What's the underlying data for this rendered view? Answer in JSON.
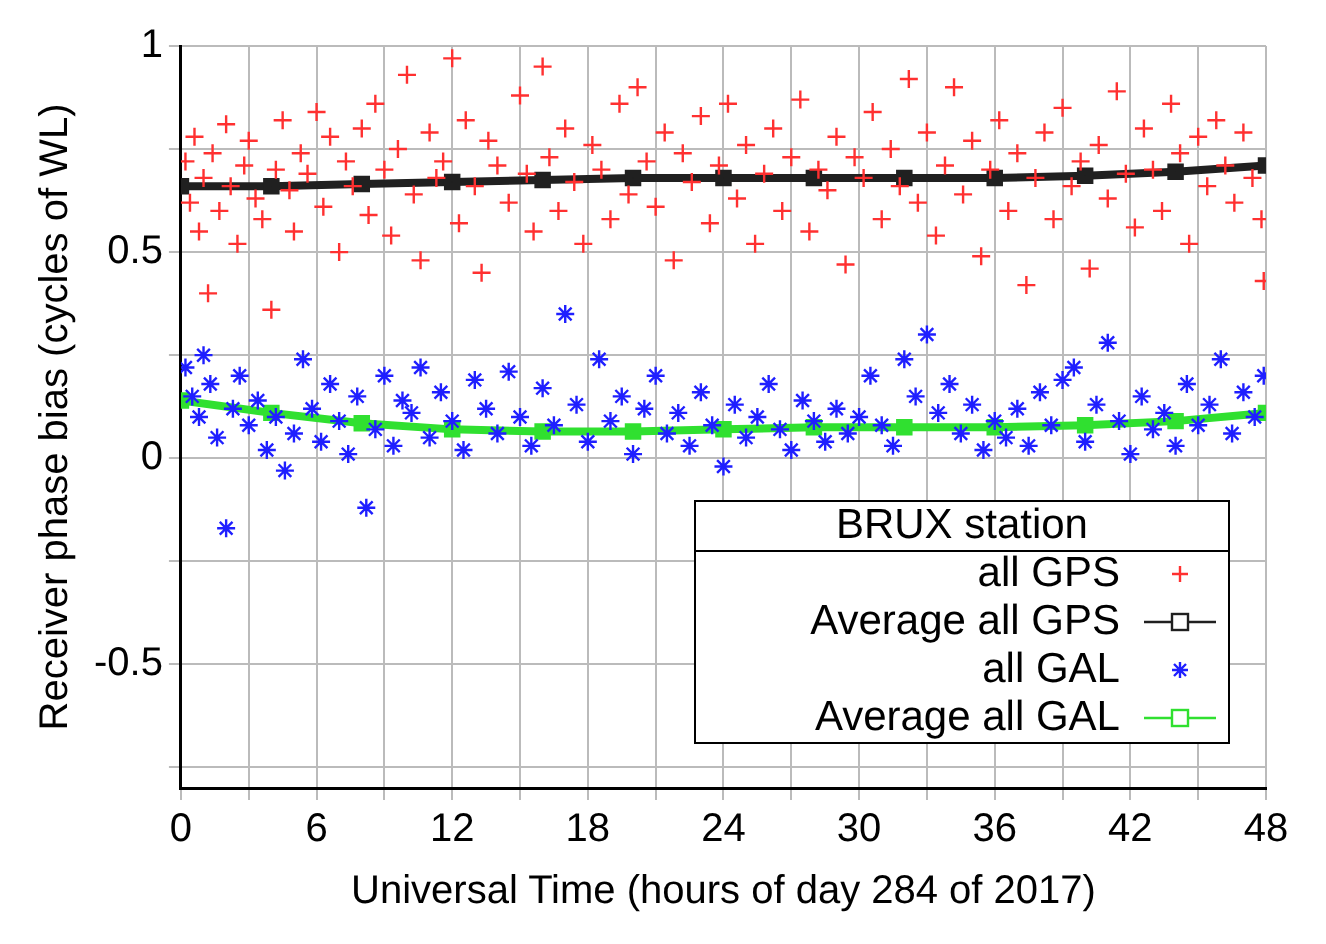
{
  "chart_data": {
    "type": "scatter",
    "xlabel": "Universal Time (hours of day 284 of 2017)",
    "ylabel": "Receiver phase bias (cycles of WL)",
    "legend_title": "BRUX station",
    "legend": "bottom right",
    "grid": true,
    "xlim": [
      0,
      48
    ],
    "xticks": [
      0,
      {
        "value": 3,
        "label": null
      },
      6,
      {
        "value": 9,
        "label": null
      },
      12,
      {
        "value": 15,
        "label": null
      },
      18,
      {
        "value": 21,
        "label": null
      },
      24,
      {
        "value": 27,
        "label": null
      },
      30,
      {
        "value": 33,
        "label": null
      },
      36,
      {
        "value": 39,
        "label": null
      },
      42,
      {
        "value": 45,
        "label": null
      },
      48
    ],
    "ylim": [
      -0.8,
      1
    ],
    "yticks": [
      1,
      {
        "value": 0.75,
        "label": null
      },
      0.5,
      {
        "value": 0.25,
        "label": null
      },
      0,
      {
        "value": -0.25,
        "label": null
      },
      -0.5,
      {
        "value": -0.75,
        "label": null
      }
    ],
    "series": [
      {
        "name": "all GPS",
        "type": "scatter",
        "marker": "cross",
        "color": "#ff3030",
        "x": [
          0.2,
          0.4,
          0.6,
          0.8,
          1,
          1.2,
          1.4,
          1.7,
          2,
          2.2,
          2.5,
          2.8,
          3,
          3.3,
          3.6,
          4,
          4.2,
          4.5,
          4.8,
          5,
          5.3,
          5.6,
          6,
          6.3,
          6.6,
          7,
          7.3,
          7.6,
          8,
          8.3,
          8.6,
          9,
          9.3,
          9.6,
          10,
          10.3,
          10.6,
          11,
          11.3,
          11.6,
          12,
          12.3,
          12.6,
          13,
          13.3,
          13.6,
          14,
          14.5,
          15,
          15.3,
          15.6,
          16,
          16.3,
          16.7,
          17,
          17.4,
          17.8,
          18.2,
          18.6,
          19,
          19.4,
          19.8,
          20.2,
          20.6,
          21,
          21.4,
          21.8,
          22.2,
          22.6,
          23,
          23.4,
          23.8,
          24.2,
          24.6,
          25,
          25.4,
          25.8,
          26.2,
          26.6,
          27,
          27.4,
          27.8,
          28.2,
          28.6,
          29,
          29.4,
          29.8,
          30.2,
          30.6,
          31,
          31.4,
          31.8,
          32.2,
          32.6,
          33,
          33.4,
          33.8,
          34.2,
          34.6,
          35,
          35.4,
          35.8,
          36.2,
          36.6,
          37,
          37.4,
          37.8,
          38.2,
          38.6,
          39,
          39.4,
          39.8,
          40.2,
          40.6,
          41,
          41.4,
          41.8,
          42.2,
          42.6,
          43,
          43.4,
          43.8,
          44.2,
          44.6,
          45,
          45.4,
          45.8,
          46.2,
          46.6,
          47,
          47.4,
          47.8,
          47.9
        ],
        "values": [
          0.72,
          0.62,
          0.78,
          0.55,
          0.68,
          0.4,
          0.74,
          0.6,
          0.81,
          0.66,
          0.52,
          0.71,
          0.77,
          0.63,
          0.58,
          0.36,
          0.7,
          0.82,
          0.65,
          0.55,
          0.74,
          0.69,
          0.84,
          0.61,
          0.78,
          0.5,
          0.72,
          0.66,
          0.8,
          0.59,
          0.86,
          0.7,
          0.54,
          0.75,
          0.93,
          0.64,
          0.48,
          0.79,
          0.68,
          0.72,
          0.97,
          0.57,
          0.82,
          0.66,
          0.45,
          0.77,
          0.71,
          0.62,
          0.88,
          0.69,
          0.55,
          0.95,
          0.73,
          0.6,
          0.8,
          0.67,
          0.52,
          0.76,
          0.7,
          0.58,
          0.86,
          0.64,
          0.9,
          0.72,
          0.61,
          0.79,
          0.48,
          0.74,
          0.67,
          0.83,
          0.57,
          0.71,
          0.86,
          0.63,
          0.76,
          0.52,
          0.69,
          0.8,
          0.6,
          0.73,
          0.87,
          0.55,
          0.7,
          0.65,
          0.78,
          0.47,
          0.73,
          0.68,
          0.84,
          0.58,
          0.75,
          0.66,
          0.92,
          0.62,
          0.79,
          0.54,
          0.71,
          0.9,
          0.64,
          0.77,
          0.49,
          0.7,
          0.82,
          0.6,
          0.74,
          0.42,
          0.68,
          0.79,
          0.58,
          0.85,
          0.66,
          0.72,
          0.46,
          0.76,
          0.63,
          0.89,
          0.69,
          0.56,
          0.8,
          0.7,
          0.6,
          0.86,
          0.74,
          0.52,
          0.78,
          0.66,
          0.82,
          0.71,
          0.62,
          0.79,
          0.68,
          0.58,
          0.43
        ]
      },
      {
        "name": "Average all GPS",
        "type": "line",
        "marker": "square",
        "color": "#202020",
        "x": [
          0,
          4,
          8,
          12,
          16,
          20,
          24,
          28,
          32,
          36,
          40,
          44,
          48
        ],
        "values": [
          0.66,
          0.66,
          0.665,
          0.67,
          0.675,
          0.68,
          0.68,
          0.68,
          0.68,
          0.68,
          0.685,
          0.695,
          0.71
        ]
      },
      {
        "name": "all GAL",
        "type": "scatter",
        "color": "#1f1fff",
        "x": [
          0.2,
          0.5,
          0.8,
          1,
          1.3,
          1.6,
          2,
          2.3,
          2.6,
          3,
          3.4,
          3.8,
          4.2,
          4.6,
          5,
          5.4,
          5.8,
          6.2,
          6.6,
          7,
          7.4,
          7.8,
          8.2,
          8.6,
          9,
          9.4,
          9.8,
          10.2,
          10.6,
          11,
          11.5,
          12,
          12.5,
          13,
          13.5,
          14,
          14.5,
          15,
          15.5,
          16,
          16.5,
          17,
          17.5,
          18,
          18.5,
          19,
          19.5,
          20,
          20.5,
          21,
          21.5,
          22,
          22.5,
          23,
          23.5,
          24,
          24.5,
          25,
          25.5,
          26,
          26.5,
          27,
          27.5,
          28,
          28.5,
          29,
          29.5,
          30,
          30.5,
          31,
          31.5,
          32,
          32.5,
          33,
          33.5,
          34,
          34.5,
          35,
          35.5,
          36,
          36.5,
          37,
          37.5,
          38,
          38.5,
          39,
          39.5,
          40,
          40.5,
          41,
          41.5,
          42,
          42.5,
          43,
          43.5,
          44,
          44.5,
          45,
          45.5,
          46,
          46.5,
          47,
          47.5,
          47.9
        ],
        "values": [
          0.22,
          0.15,
          0.1,
          0.25,
          0.18,
          0.05,
          -0.17,
          0.12,
          0.2,
          0.08,
          0.14,
          0.02,
          0.1,
          -0.03,
          0.06,
          0.24,
          0.12,
          0.04,
          0.18,
          0.09,
          0.01,
          0.15,
          -0.12,
          0.07,
          0.2,
          0.03,
          0.14,
          0.11,
          0.22,
          0.05,
          0.16,
          0.09,
          0.02,
          0.19,
          0.12,
          0.06,
          0.21,
          0.1,
          0.03,
          0.17,
          0.08,
          0.35,
          0.13,
          0.04,
          0.24,
          0.09,
          0.15,
          0.01,
          0.12,
          0.2,
          0.06,
          0.11,
          0.03,
          0.16,
          0.08,
          -0.02,
          0.13,
          0.05,
          0.1,
          0.18,
          0.07,
          0.02,
          0.14,
          0.09,
          0.04,
          0.12,
          0.06,
          0.1,
          0.2,
          0.08,
          0.03,
          0.24,
          0.15,
          0.3,
          0.11,
          0.18,
          0.06,
          0.13,
          0.02,
          0.09,
          0.05,
          0.12,
          0.03,
          0.16,
          0.08,
          0.19,
          0.22,
          0.04,
          0.13,
          0.28,
          0.09,
          0.01,
          0.15,
          0.07,
          0.11,
          0.03,
          0.18,
          0.08,
          0.13,
          0.24,
          0.06,
          0.16,
          0.1,
          0.2
        ]
      },
      {
        "name": "Average all GAL",
        "type": "line",
        "marker": "square",
        "color": "#30e030",
        "x": [
          0,
          4,
          8,
          12,
          16,
          20,
          24,
          28,
          32,
          36,
          40,
          44,
          48
        ],
        "values": [
          0.14,
          0.11,
          0.085,
          0.07,
          0.065,
          0.065,
          0.07,
          0.075,
          0.075,
          0.075,
          0.08,
          0.09,
          0.11
        ]
      }
    ]
  }
}
